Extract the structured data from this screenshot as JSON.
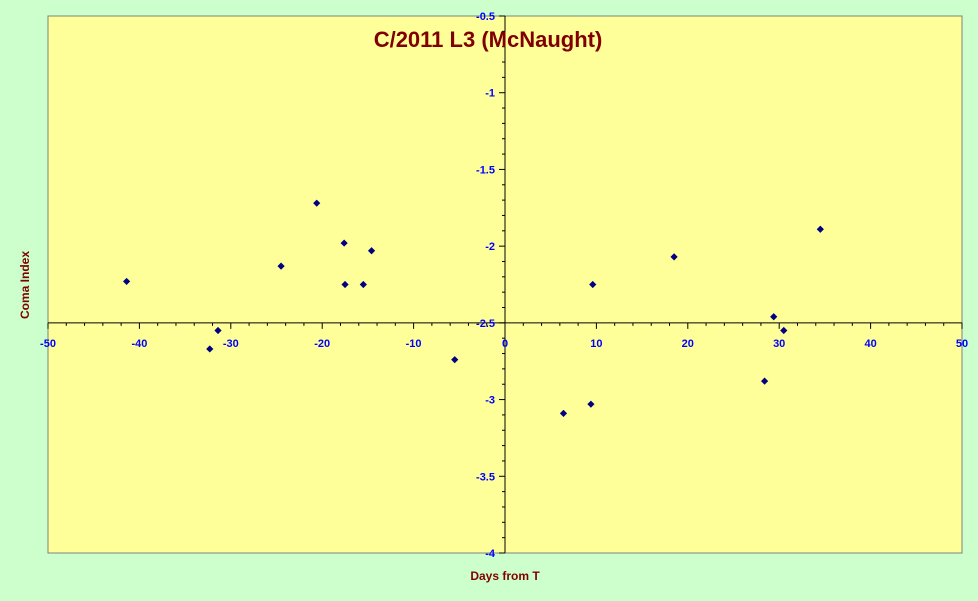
{
  "chart_data": {
    "type": "scatter",
    "title": "C/2011 L3 (McNaught)",
    "xlabel": "Days from T",
    "ylabel": "Coma Index",
    "xlim": [
      -50,
      50
    ],
    "ylim": [
      -4,
      -0.5
    ],
    "y_reversed": true,
    "x_ticks": [
      -50,
      -40,
      -30,
      -20,
      -10,
      0,
      10,
      20,
      30,
      40,
      50
    ],
    "y_ticks": [
      -0.5,
      -1,
      -1.5,
      -2,
      -2.5,
      -3,
      -3.5,
      -4
    ],
    "x_tick_labels": [
      "-50",
      "-40",
      "-30",
      "-20",
      "-10",
      "0",
      "10",
      "20",
      "30",
      "40",
      "50"
    ],
    "y_tick_labels": [
      "-0.5",
      "-1",
      "-1.5",
      "-2",
      "-2.5",
      "-3",
      "-3.5",
      "-4"
    ],
    "x_axis_crosses_y": -2.5,
    "grid": false,
    "colors": {
      "plot_background": "#ffff99",
      "figure_background": "#ccffcc",
      "marker": "#000080",
      "tick_labels": "#0000ff",
      "titles": "#800000"
    },
    "series": [
      {
        "marker": "diamond",
        "points": [
          {
            "x": -41.4,
            "y": -2.23
          },
          {
            "x": -32.3,
            "y": -2.67
          },
          {
            "x": -31.4,
            "y": -2.55
          },
          {
            "x": -24.5,
            "y": -2.13
          },
          {
            "x": -20.6,
            "y": -1.72
          },
          {
            "x": -17.6,
            "y": -1.98
          },
          {
            "x": -17.5,
            "y": -2.25
          },
          {
            "x": -15.5,
            "y": -2.25
          },
          {
            "x": -14.6,
            "y": -2.03
          },
          {
            "x": -5.5,
            "y": -2.74
          },
          {
            "x": 6.4,
            "y": -3.09
          },
          {
            "x": 9.4,
            "y": -3.03
          },
          {
            "x": 9.6,
            "y": -2.25
          },
          {
            "x": 18.5,
            "y": -2.07
          },
          {
            "x": 28.4,
            "y": -2.88
          },
          {
            "x": 29.4,
            "y": -2.46
          },
          {
            "x": 30.5,
            "y": -2.55
          },
          {
            "x": 34.5,
            "y": -1.89
          }
        ]
      }
    ]
  }
}
